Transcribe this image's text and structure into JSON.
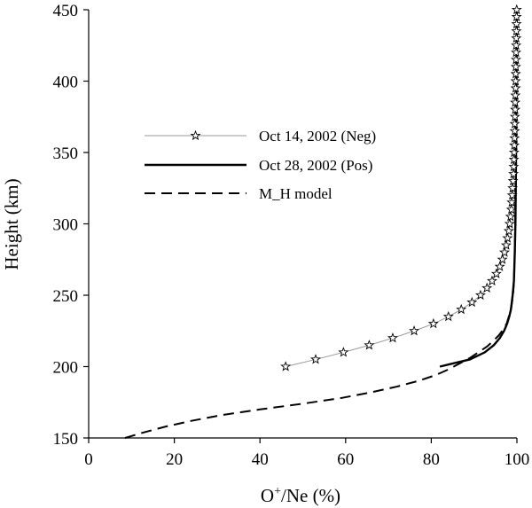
{
  "chart_data": {
    "type": "line",
    "title": "",
    "xlabel_parts": [
      "O",
      "+",
      "/Ne (%)"
    ],
    "ylabel": "Height (km)",
    "xlim": [
      0,
      100
    ],
    "ylim": [
      150,
      450
    ],
    "x_ticks": [
      "0",
      "20",
      "40",
      "60",
      "80",
      "100"
    ],
    "y_ticks": [
      "150",
      "200",
      "250",
      "300",
      "350",
      "400",
      "450"
    ],
    "grid": false,
    "legend_position": "center-left",
    "series": [
      {
        "name": "Oct 14, 2002 (Neg)",
        "style": "line-with-star-markers",
        "color": "#999999",
        "marker_color": "#000000",
        "points": [
          [
            46,
            200
          ],
          [
            53,
            205
          ],
          [
            59.5,
            210
          ],
          [
            65.5,
            215
          ],
          [
            71,
            220
          ],
          [
            76,
            225
          ],
          [
            80.5,
            230
          ],
          [
            84,
            235
          ],
          [
            87,
            240
          ],
          [
            89.5,
            245
          ],
          [
            91.5,
            250
          ],
          [
            93,
            255
          ],
          [
            94.2,
            260
          ],
          [
            95.2,
            265
          ],
          [
            96,
            270
          ],
          [
            96.6,
            275
          ],
          [
            97.1,
            280
          ],
          [
            97.5,
            285
          ],
          [
            97.8,
            290
          ],
          [
            98.1,
            295
          ],
          [
            98.3,
            300
          ],
          [
            98.5,
            305
          ],
          [
            98.7,
            310
          ],
          [
            98.8,
            315
          ],
          [
            98.9,
            320
          ],
          [
            99.0,
            325
          ],
          [
            99.1,
            330
          ],
          [
            99.2,
            335
          ],
          [
            99.25,
            340
          ],
          [
            99.3,
            345
          ],
          [
            99.35,
            350
          ],
          [
            99.4,
            355
          ],
          [
            99.45,
            360
          ],
          [
            99.5,
            365
          ],
          [
            99.5,
            370
          ],
          [
            99.55,
            375
          ],
          [
            99.6,
            380
          ],
          [
            99.6,
            385
          ],
          [
            99.65,
            390
          ],
          [
            99.7,
            395
          ],
          [
            99.7,
            400
          ],
          [
            99.72,
            405
          ],
          [
            99.75,
            410
          ],
          [
            99.78,
            415
          ],
          [
            99.8,
            420
          ],
          [
            99.82,
            425
          ],
          [
            99.85,
            430
          ],
          [
            99.87,
            435
          ],
          [
            99.9,
            440
          ],
          [
            99.92,
            445
          ],
          [
            99.95,
            450
          ]
        ]
      },
      {
        "name": "Oct 28, 2002 (Pos)",
        "style": "solid",
        "color": "#000000",
        "points": [
          [
            82,
            200
          ],
          [
            89,
            205
          ],
          [
            92.5,
            210
          ],
          [
            94.6,
            215
          ],
          [
            96,
            220
          ],
          [
            97,
            225
          ],
          [
            97.7,
            230
          ],
          [
            98.2,
            235
          ],
          [
            98.6,
            240
          ],
          [
            99,
            250
          ],
          [
            99.3,
            260
          ],
          [
            99.5,
            280
          ],
          [
            99.65,
            300
          ],
          [
            99.75,
            330
          ],
          [
            99.82,
            360
          ],
          [
            99.88,
            390
          ],
          [
            99.93,
            420
          ],
          [
            99.97,
            450
          ]
        ]
      },
      {
        "name": "M_H model",
        "style": "dashed",
        "color": "#000000",
        "points": [
          [
            8.5,
            150
          ],
          [
            13,
            154
          ],
          [
            18,
            158
          ],
          [
            24,
            162
          ],
          [
            31,
            166
          ],
          [
            40,
            170
          ],
          [
            50,
            174
          ],
          [
            59,
            178
          ],
          [
            66,
            182
          ],
          [
            72,
            186
          ],
          [
            77,
            190
          ],
          [
            81,
            194
          ],
          [
            84,
            198
          ],
          [
            86.5,
            202
          ],
          [
            89,
            206
          ],
          [
            91,
            210
          ],
          [
            93,
            214
          ],
          [
            94.5,
            218
          ],
          [
            95.8,
            222
          ],
          [
            96.8,
            226
          ],
          [
            97.6,
            230
          ],
          [
            98.2,
            236
          ],
          [
            98.7,
            242
          ],
          [
            99.1,
            250
          ],
          [
            99.3,
            260
          ],
          [
            99.5,
            280
          ],
          [
            99.6,
            300
          ],
          [
            99.7,
            330
          ],
          [
            99.8,
            360
          ],
          [
            99.87,
            390
          ],
          [
            99.93,
            420
          ],
          [
            99.97,
            450
          ]
        ]
      }
    ]
  }
}
